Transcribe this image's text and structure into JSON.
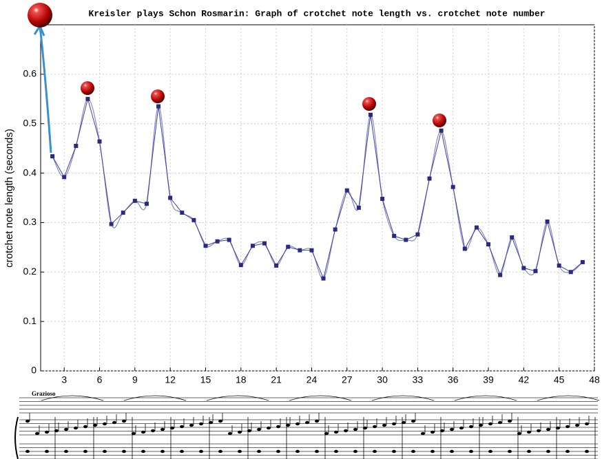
{
  "chart_data": {
    "type": "line",
    "title": "Kreisler plays Schon Rosmarin: Graph of crotchet note length vs. crotchet note number",
    "y_label": "crotchet note length (seconds)",
    "x": [
      2,
      3,
      4,
      5,
      6,
      7,
      8,
      9,
      10,
      11,
      12,
      13,
      14,
      15,
      16,
      17,
      18,
      19,
      20,
      21,
      22,
      23,
      24,
      25,
      26,
      27,
      28,
      29,
      30,
      31,
      32,
      33,
      34,
      35,
      36,
      37,
      38,
      39,
      40,
      41,
      42,
      43,
      44,
      45,
      46,
      47
    ],
    "series": [
      {
        "color": "#3f3fa0",
        "values": [
          0.434,
          0.392,
          0.455,
          0.55,
          0.464,
          0.297,
          0.32,
          0.344,
          0.338,
          0.535,
          0.35,
          0.32,
          0.305,
          0.253,
          0.262,
          0.265,
          0.214,
          0.253,
          0.258,
          0.213,
          0.251,
          0.244,
          0.244,
          0.187,
          0.286,
          0.365,
          0.33,
          0.518,
          0.348,
          0.273,
          0.265,
          0.276,
          0.389,
          0.486,
          0.372,
          0.247,
          0.29,
          0.256,
          0.194,
          0.27,
          0.208,
          0.202,
          0.302,
          0.213,
          0.2,
          0.22
        ]
      }
    ],
    "xlim": [
      1,
      48
    ],
    "ylim": [
      0,
      0.7
    ],
    "xticks": [
      3,
      6,
      9,
      12,
      15,
      18,
      21,
      24,
      27,
      30,
      33,
      36,
      39,
      42,
      45,
      48
    ],
    "yticks": [
      0,
      0.1,
      0.2,
      0.3,
      0.4,
      0.5,
      0.6
    ],
    "grid": true
  },
  "score": {
    "tempo": "Grazioso"
  }
}
